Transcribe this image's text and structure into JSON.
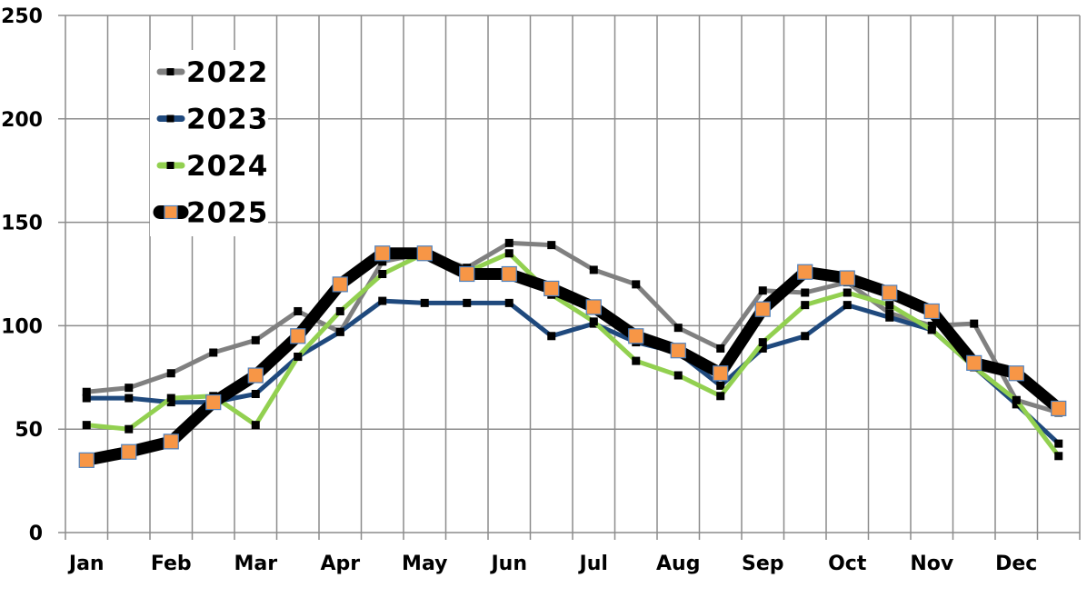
{
  "chart_data": {
    "type": "line",
    "title": "",
    "xlabel": "",
    "ylabel": "",
    "ylim": [
      0,
      250
    ],
    "yticks": [
      0,
      50,
      100,
      150,
      200,
      250
    ],
    "grid": true,
    "legend_position": "upper-left-inside",
    "month_labels": [
      "Jan",
      "Feb",
      "Mar",
      "Apr",
      "May",
      "Jun",
      "Jul",
      "Aug",
      "Sep",
      "Oct",
      "Nov",
      "Dec"
    ],
    "points_per_month": 2,
    "series": [
      {
        "name": "2022",
        "color": "#808080",
        "width": 5,
        "marker_fill": "#000000",
        "values": [
          68,
          70,
          77,
          87,
          93,
          107,
          97,
          131,
          135,
          128,
          140,
          139,
          127,
          120,
          99,
          89,
          117,
          116,
          121,
          106,
          100,
          101,
          64,
          58
        ]
      },
      {
        "name": "2023",
        "color": "#1f497d",
        "width": 5,
        "marker_fill": "#000000",
        "values": [
          65,
          65,
          63,
          63,
          67,
          85,
          97,
          112,
          111,
          111,
          111,
          95,
          101,
          92,
          87,
          71,
          89,
          95,
          110,
          104,
          98,
          80,
          62,
          43
        ]
      },
      {
        "name": "2024",
        "color": "#92d050",
        "width": 5,
        "marker_fill": "#000000",
        "values": [
          52,
          50,
          65,
          66,
          52,
          85,
          107,
          125,
          135,
          126,
          135,
          115,
          102,
          83,
          76,
          66,
          92,
          110,
          116,
          110,
          98,
          80,
          64,
          37
        ]
      },
      {
        "name": "2025",
        "color": "#000000",
        "width": 13,
        "marker_fill": "#f79646",
        "marker_stroke": "#4f81bd",
        "values": [
          35,
          39,
          44,
          63,
          76,
          95,
          120,
          135,
          135,
          125,
          125,
          118,
          109,
          95,
          88,
          77,
          108,
          126,
          123,
          116,
          107,
          82,
          77,
          60
        ]
      }
    ]
  },
  "axis": {
    "y_labels": [
      "0",
      "50",
      "100",
      "150",
      "200",
      "250"
    ],
    "x_labels": [
      "Jan",
      "Feb",
      "Mar",
      "Apr",
      "May",
      "Jun",
      "Jul",
      "Aug",
      "Sep",
      "Oct",
      "Nov",
      "Dec"
    ]
  },
  "legend": {
    "items": [
      "2022",
      "2023",
      "2024",
      "2025"
    ]
  },
  "colors": {
    "grid": "#8c8c8c",
    "background": "#ffffff"
  }
}
